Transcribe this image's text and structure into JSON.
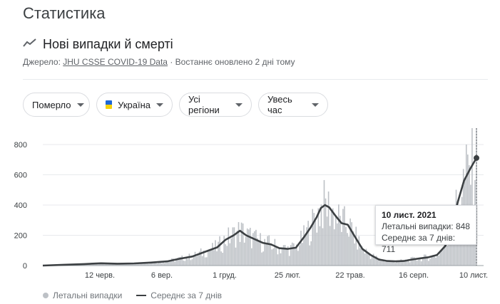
{
  "page_title": "Статистика",
  "section": {
    "title": "Нові випадки й смерті",
    "icon": "trending-line-icon",
    "source_prefix": "Джерело:",
    "source_link": "JHU CSSE COVID-19 Data",
    "updated": "· Востаннє оновлено 2 дні тому"
  },
  "filters": {
    "metric": "Померло",
    "country": "Україна",
    "region": "Усі регіони",
    "period": "Увесь час",
    "flag_colors": {
      "blue": "#1d67d6",
      "yellow": "#f5d20c"
    }
  },
  "tooltip": {
    "date": "10 лист. 2021",
    "deaths_label": "Летальні випадки:",
    "deaths_value": "848",
    "avg_label": "Середнє за 7 днів:",
    "avg_value": "711"
  },
  "legend": {
    "bars": "Летальні випадки",
    "line": "Середнє за 7 днів"
  },
  "colors": {
    "bars": "#bdc1c6",
    "line": "#3c4043",
    "grid": "#e8eaed",
    "axis_text": "#3c4043"
  },
  "chart_data": {
    "type": "bar",
    "ylim": [
      0,
      900
    ],
    "yticks": [
      "0",
      "200",
      "400",
      "600",
      "800"
    ],
    "xticks": [
      "12 черв.",
      "6 вер.",
      "1 груд.",
      "25 лют.",
      "22 трав.",
      "16 серп.",
      "10 лист."
    ],
    "grid": true,
    "legend_position": "bottom-left",
    "daily_deaths_note": "bars",
    "series": [
      {
        "name": "Середнє за 7 днів",
        "points": [
          [
            0,
            0
          ],
          [
            10,
            5
          ],
          [
            20,
            10
          ],
          [
            28,
            15
          ],
          [
            36,
            12
          ],
          [
            44,
            14
          ],
          [
            52,
            20
          ],
          [
            60,
            28
          ],
          [
            66,
            45
          ],
          [
            72,
            60
          ],
          [
            78,
            90
          ],
          [
            84,
            120
          ],
          [
            88,
            170
          ],
          [
            92,
            200
          ],
          [
            95,
            230
          ],
          [
            98,
            200
          ],
          [
            102,
            175
          ],
          [
            106,
            150
          ],
          [
            110,
            140
          ],
          [
            114,
            115
          ],
          [
            118,
            110
          ],
          [
            122,
            118
          ],
          [
            126,
            190
          ],
          [
            129,
            250
          ],
          [
            132,
            320
          ],
          [
            134,
            380
          ],
          [
            136,
            400
          ],
          [
            138,
            385
          ],
          [
            141,
            330
          ],
          [
            144,
            280
          ],
          [
            147,
            270
          ],
          [
            150,
            200
          ],
          [
            154,
            110
          ],
          [
            158,
            70
          ],
          [
            162,
            40
          ],
          [
            166,
            30
          ],
          [
            170,
            28
          ],
          [
            174,
            30
          ],
          [
            178,
            40
          ],
          [
            182,
            48
          ],
          [
            186,
            55
          ],
          [
            190,
            70
          ],
          [
            194,
            130
          ],
          [
            197,
            250
          ],
          [
            200,
            420
          ],
          [
            203,
            560
          ],
          [
            206,
            640
          ],
          [
            209,
            711
          ]
        ]
      }
    ]
  }
}
